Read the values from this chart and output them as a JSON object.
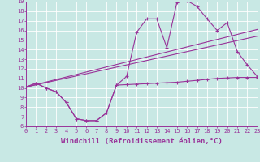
{
  "bg_color": "#c8e8e4",
  "grid_color": "#b0d8d4",
  "line_color": "#993399",
  "xlabel": "Windchill (Refroidissement éolien,°C)",
  "ymin": 6,
  "ymax": 19,
  "xmin": 0,
  "xmax": 23,
  "curve_main_x": [
    0,
    1,
    2,
    3,
    4,
    5,
    6,
    7,
    8,
    9,
    10,
    11,
    12,
    13,
    14,
    15,
    16,
    17,
    18,
    19,
    20,
    21,
    22,
    23
  ],
  "curve_main_y": [
    10.1,
    10.5,
    10.0,
    9.6,
    8.5,
    6.8,
    6.6,
    6.6,
    7.4,
    10.3,
    11.2,
    15.8,
    17.2,
    17.2,
    14.2,
    18.9,
    19.1,
    18.5,
    17.2,
    16.0,
    16.8,
    13.8,
    12.4,
    11.2
  ],
  "curve_bottom_x": [
    0,
    1,
    2,
    3,
    4,
    5,
    6,
    7,
    8,
    9,
    10,
    11,
    12,
    13,
    14,
    15,
    16,
    17,
    18,
    19,
    20,
    21,
    22,
    23
  ],
  "curve_bottom_y": [
    10.1,
    10.5,
    10.0,
    9.6,
    8.5,
    6.8,
    6.6,
    6.6,
    7.4,
    10.3,
    10.35,
    10.4,
    10.45,
    10.5,
    10.55,
    10.6,
    10.7,
    10.8,
    10.9,
    11.0,
    11.05,
    11.1,
    11.1,
    11.1
  ],
  "trend1_x": [
    0,
    23
  ],
  "trend1_y": [
    10.1,
    16.1
  ],
  "trend2_x": [
    0,
    23
  ],
  "trend2_y": [
    10.1,
    15.4
  ],
  "tick_fontsize": 5.0,
  "label_fontsize": 6.5
}
